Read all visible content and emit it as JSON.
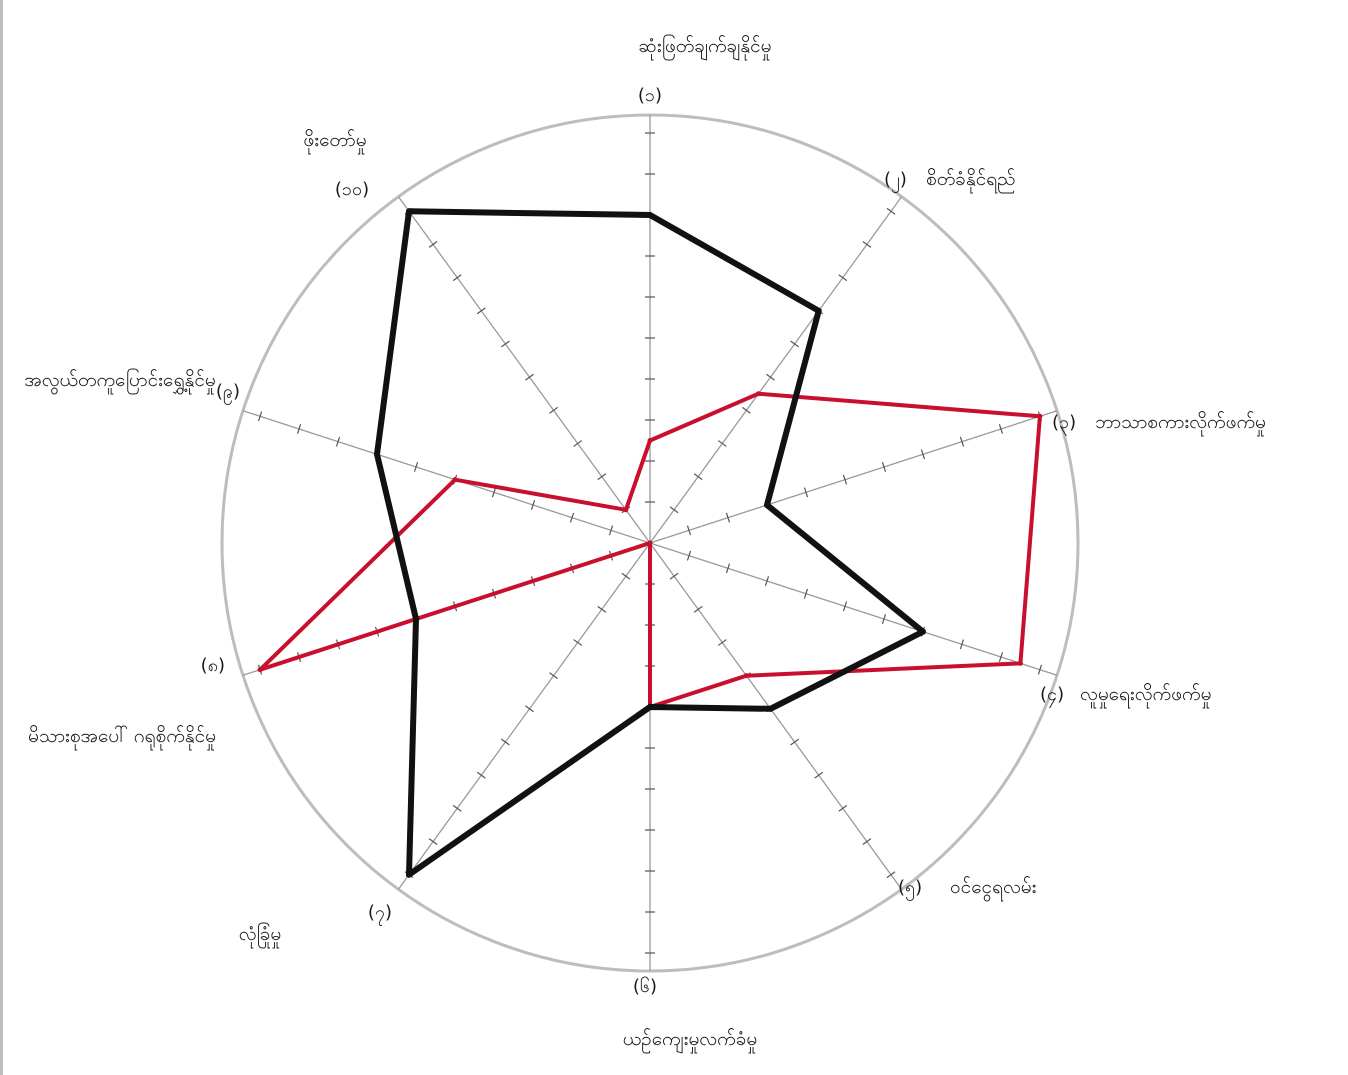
{
  "chart_data": {
    "type": "radar",
    "title": "",
    "scale_max": 10,
    "grid": true,
    "colors": {
      "outer_circle": "#bdbdbd",
      "spokes": "#9a9a9a",
      "ticks": "#555555",
      "black_series": "#111111",
      "red_series": "#c8102e"
    },
    "axes": [
      {
        "num": "(၁)",
        "label": "ဆုံးဖြတ်ချက်ချနိုင်မှု"
      },
      {
        "num": "(၂)",
        "label": "စိတ်ခံနိုင်ရည်"
      },
      {
        "num": "(၃)",
        "label": "ဘာသာစကားလိုက်ဖက်မှု"
      },
      {
        "num": "(၄)",
        "label": "လူမှုရေးလိုက်ဖက်မှု"
      },
      {
        "num": "(၅)",
        "label": "ဝင်ငွေရလမ်း"
      },
      {
        "num": "(၆)",
        "label": "ယဉ်ကျေးမှုလက်ခံမှု"
      },
      {
        "num": "(၇)",
        "label": "လုံခြုံမှု"
      },
      {
        "num": "(၈)",
        "label": "မိသားစုအပေါ် ဂရုစိုက်နိုင်မှု"
      },
      {
        "num": "(၉)",
        "label": "အလွယ်တကူပြောင်းရွှေ့နိုင်မှု"
      },
      {
        "num": "(၁၀)",
        "label": "ဖိုးတော်မှု"
      }
    ],
    "series": [
      {
        "values": [
          8,
          7,
          3,
          7,
          5,
          4,
          10,
          6,
          7,
          10
        ]
      },
      {
        "values": [
          2.5,
          4.5,
          10,
          9.5,
          4,
          4,
          0,
          10,
          5,
          1
        ]
      }
    ]
  }
}
